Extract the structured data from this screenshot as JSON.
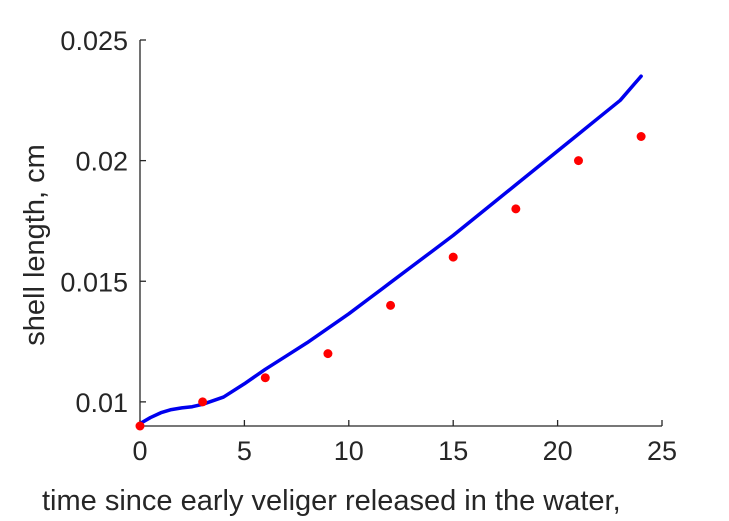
{
  "chart_data": {
    "type": "scatter",
    "xlabel": "time since early veliger released in the water,",
    "ylabel": "shell length, cm",
    "xlim": [
      0,
      25
    ],
    "ylim": [
      0.009,
      0.025
    ],
    "xticks": [
      0,
      5,
      10,
      15,
      20,
      25
    ],
    "xtick_labels": [
      "0",
      "5",
      "10",
      "15",
      "20",
      "25"
    ],
    "yticks": [
      0.01,
      0.015,
      0.02,
      0.025
    ],
    "ytick_labels": [
      "0.01",
      "0.015",
      "0.02",
      "0.025"
    ],
    "grid": false,
    "legend": "none",
    "box": false,
    "series": [
      {
        "kind": "line",
        "color": "#0000ee",
        "x": [
          0,
          0.5,
          1,
          1.5,
          2,
          2.5,
          3,
          4,
          5,
          6,
          7,
          8,
          9,
          10,
          11,
          12,
          13,
          14,
          15,
          16,
          17,
          18,
          19,
          20,
          21,
          22,
          23,
          24
        ],
        "y": [
          0.0091,
          0.00935,
          0.00955,
          0.00968,
          0.00975,
          0.0098,
          0.0099,
          0.0102,
          0.01075,
          0.01135,
          0.0119,
          0.01245,
          0.01305,
          0.01365,
          0.0143,
          0.01495,
          0.0156,
          0.01625,
          0.0169,
          0.0176,
          0.0183,
          0.019,
          0.0197,
          0.0204,
          0.0211,
          0.0218,
          0.0225,
          0.0235
        ]
      },
      {
        "kind": "scatter",
        "color": "#ff0000",
        "x": [
          0,
          3,
          6,
          9,
          12,
          15,
          18,
          21,
          24
        ],
        "y": [
          0.009,
          0.01,
          0.011,
          0.012,
          0.014,
          0.016,
          0.018,
          0.02,
          0.021
        ]
      }
    ]
  }
}
